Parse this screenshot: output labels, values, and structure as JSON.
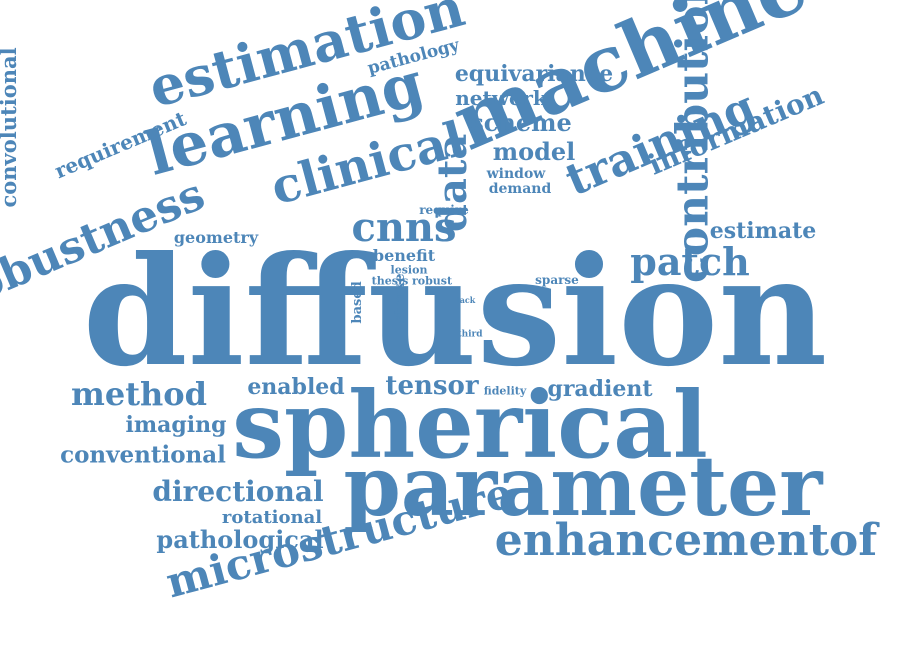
{
  "accent_color": "#4d86b8",
  "words": {
    "diffusion": "diffusion",
    "spherical": "spherical",
    "parameter": "parameter",
    "machine": "machine",
    "learning": "learning",
    "estimation": "estimation",
    "clinical": "clinical",
    "enhancementof": "enhancementof",
    "microstructure": "microstructure",
    "contribution": "contribution",
    "training": "training",
    "robustness": "robustness",
    "data": "data",
    "patch": "patch",
    "cnns": "cnns",
    "method": "method",
    "tensor": "tensor",
    "information": "information",
    "directional": "directional",
    "pathological": "pathological",
    "conventional": "conventional",
    "imaging": "imaging",
    "enabled": "enabled",
    "gradient": "gradient",
    "estimate": "estimate",
    "rotational": "rotational",
    "convolutional": "convolutional",
    "requirement": "requirement",
    "equivariance": "equivariance",
    "network": "network",
    "scheme": "scheme",
    "model": "model",
    "pathology": "pathology",
    "geometry": "geometry",
    "window": "window",
    "demand": "demand",
    "require": "require",
    "benefit": "benefit",
    "lesion": "lesion",
    "thesis": "thesis",
    "robust": "robust",
    "sparse": "sparse",
    "lack": "lack",
    "based": "based",
    "stroke": "stroke",
    "third": "third",
    "fidelity": "fidelity"
  }
}
